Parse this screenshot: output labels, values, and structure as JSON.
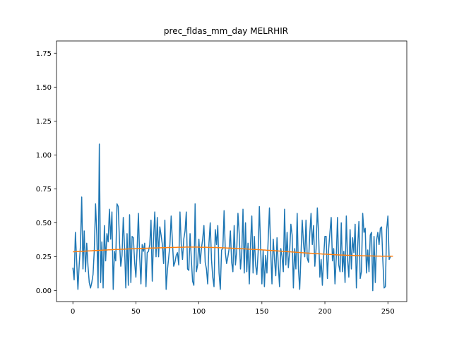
{
  "chart_data": {
    "type": "line",
    "title": "prec_fldas_mm_day MELRHIR",
    "xlim": [
      -13,
      265
    ],
    "ylim": [
      -0.08,
      1.84
    ],
    "xticks": [
      0,
      50,
      100,
      150,
      200,
      250
    ],
    "xtick_labels": [
      "0",
      "50",
      "100",
      "150",
      "200",
      "250"
    ],
    "yticks": [
      0.0,
      0.25,
      0.5,
      0.75,
      1.0,
      1.25,
      1.5,
      1.75
    ],
    "ytick_labels": [
      "0.00",
      "0.25",
      "0.50",
      "0.75",
      "1.00",
      "1.25",
      "1.50",
      "1.75"
    ],
    "series": [
      {
        "color": "#1f77b4",
        "x_start": 0,
        "values": [
          0.17,
          0.08,
          0.43,
          0.22,
          0.01,
          0.19,
          0.33,
          0.69,
          0.16,
          0.44,
          0.14,
          0.35,
          0.18,
          0.06,
          0.02,
          0.06,
          0.12,
          0.3,
          0.64,
          0.41,
          0.02,
          1.08,
          0.06,
          0.36,
          0.02,
          0.48,
          0.22,
          0.42,
          0.36,
          0.6,
          0.38,
          0.58,
          0.01,
          0.29,
          0.22,
          0.64,
          0.62,
          0.36,
          0.18,
          0.26,
          0.54,
          0.32,
          0.02,
          0.42,
          0.04,
          0.56,
          0.06,
          0.4,
          0.39,
          0.21,
          0.1,
          0.31,
          0.57,
          0.25,
          0.05,
          0.34,
          0.29,
          0.35,
          0.03,
          0.28,
          0.29,
          0.34,
          0.52,
          0.07,
          0.38,
          0.58,
          0.25,
          0.54,
          0.25,
          0.47,
          0.41,
          0.34,
          0.2,
          0.52,
          0.01,
          0.15,
          0.24,
          0.34,
          0.55,
          0.36,
          0.18,
          0.21,
          0.26,
          0.28,
          0.19,
          0.58,
          0.34,
          0.23,
          0.38,
          0.44,
          0.58,
          0.16,
          0.15,
          0.42,
          0.23,
          0.07,
          0.04,
          0.64,
          0.14,
          0.19,
          0.38,
          0.2,
          0.31,
          0.38,
          0.48,
          0.21,
          0.16,
          0.05,
          0.35,
          0.5,
          0.23,
          0.1,
          0.03,
          0.45,
          0.34,
          0.48,
          0.13,
          0.01,
          0.3,
          0.31,
          0.59,
          0.28,
          0.2,
          0.25,
          0.31,
          0.44,
          0.21,
          0.14,
          0.48,
          0.19,
          0.29,
          0.57,
          0.42,
          0.16,
          0.27,
          0.6,
          0.13,
          0.5,
          0.14,
          0.35,
          0.05,
          0.35,
          0.55,
          0.13,
          0.4,
          0.19,
          0.12,
          0.28,
          0.62,
          0.31,
          0.05,
          0.3,
          0.03,
          0.26,
          0.13,
          0.38,
          0.61,
          0.29,
          0.05,
          0.38,
          0.23,
          0.11,
          0.39,
          0.19,
          0.03,
          0.31,
          0.25,
          0.14,
          0.6,
          0.19,
          0.43,
          0.17,
          0.28,
          0.49,
          0.41,
          0.02,
          0.31,
          0.16,
          0.57,
          0.16,
          0.01,
          0.26,
          0.52,
          0.35,
          0.25,
          0.52,
          0.24,
          0.21,
          0.42,
          0.57,
          0.34,
          0.48,
          0.18,
          0.31,
          0.61,
          0.42,
          0.1,
          0.23,
          0.04,
          0.25,
          0.4,
          0.4,
          0.09,
          0.31,
          0.43,
          0.54,
          0.22,
          0.31,
          0.05,
          0.24,
          0.54,
          0.19,
          0.14,
          0.5,
          0.14,
          0.29,
          0.06,
          0.55,
          0.23,
          0.1,
          0.45,
          0.16,
          0.39,
          0.28,
          0.49,
          0.02,
          0.32,
          0.51,
          0.09,
          0.14,
          0.57,
          0.43,
          0.46,
          0.13,
          0.3,
          0.14,
          0.41,
          0.43,
          0.0,
          0.4,
          0.06,
          0.37,
          0.43,
          0.34,
          0.46,
          0.47,
          0.22,
          0.02,
          0.03,
          0.45,
          0.55,
          0.23,
          0.25
        ]
      },
      {
        "color": "#ff7f0e",
        "x_start": 0,
        "values": [
          0.287,
          0.287,
          0.288,
          0.288,
          0.289,
          0.289,
          0.29,
          0.29,
          0.291,
          0.291,
          0.292,
          0.292,
          0.293,
          0.293,
          0.294,
          0.294,
          0.295,
          0.295,
          0.296,
          0.296,
          0.297,
          0.297,
          0.298,
          0.298,
          0.299,
          0.299,
          0.3,
          0.3,
          0.301,
          0.301,
          0.302,
          0.302,
          0.303,
          0.303,
          0.304,
          0.304,
          0.304,
          0.305,
          0.305,
          0.306,
          0.306,
          0.306,
          0.307,
          0.307,
          0.308,
          0.308,
          0.308,
          0.309,
          0.309,
          0.309,
          0.31,
          0.31,
          0.311,
          0.311,
          0.311,
          0.312,
          0.312,
          0.312,
          0.313,
          0.313,
          0.313,
          0.314,
          0.314,
          0.314,
          0.315,
          0.315,
          0.315,
          0.315,
          0.316,
          0.316,
          0.316,
          0.317,
          0.317,
          0.317,
          0.317,
          0.318,
          0.318,
          0.318,
          0.318,
          0.319,
          0.319,
          0.319,
          0.319,
          0.32,
          0.32,
          0.32,
          0.32,
          0.32,
          0.32,
          0.321,
          0.321,
          0.321,
          0.321,
          0.321,
          0.321,
          0.321,
          0.321,
          0.321,
          0.321,
          0.321,
          0.321,
          0.32,
          0.32,
          0.32,
          0.32,
          0.32,
          0.32,
          0.319,
          0.319,
          0.319,
          0.319,
          0.318,
          0.318,
          0.318,
          0.318,
          0.317,
          0.317,
          0.317,
          0.316,
          0.316,
          0.316,
          0.315,
          0.315,
          0.314,
          0.314,
          0.314,
          0.313,
          0.313,
          0.312,
          0.312,
          0.311,
          0.311,
          0.31,
          0.31,
          0.309,
          0.309,
          0.308,
          0.308,
          0.307,
          0.307,
          0.306,
          0.306,
          0.305,
          0.305,
          0.304,
          0.304,
          0.303,
          0.303,
          0.302,
          0.301,
          0.301,
          0.3,
          0.3,
          0.299,
          0.298,
          0.298,
          0.297,
          0.296,
          0.296,
          0.295,
          0.295,
          0.294,
          0.293,
          0.293,
          0.292,
          0.291,
          0.291,
          0.29,
          0.289,
          0.289,
          0.288,
          0.287,
          0.287,
          0.286,
          0.285,
          0.285,
          0.284,
          0.283,
          0.283,
          0.282,
          0.281,
          0.281,
          0.28,
          0.279,
          0.279,
          0.278,
          0.277,
          0.277,
          0.276,
          0.276,
          0.275,
          0.274,
          0.274,
          0.273,
          0.273,
          0.272,
          0.271,
          0.271,
          0.27,
          0.27,
          0.269,
          0.269,
          0.268,
          0.268,
          0.267,
          0.267,
          0.266,
          0.266,
          0.265,
          0.265,
          0.264,
          0.264,
          0.263,
          0.263,
          0.263,
          0.262,
          0.262,
          0.261,
          0.261,
          0.261,
          0.26,
          0.26,
          0.26,
          0.259,
          0.259,
          0.259,
          0.258,
          0.258,
          0.258,
          0.258,
          0.257,
          0.257,
          0.257,
          0.257,
          0.256,
          0.256,
          0.256,
          0.256,
          0.256,
          0.255,
          0.255,
          0.255,
          0.255,
          0.255,
          0.255,
          0.254,
          0.254,
          0.254,
          0.254,
          0.254,
          0.254,
          0.254,
          0.254,
          0.254,
          0.254
        ]
      }
    ]
  }
}
